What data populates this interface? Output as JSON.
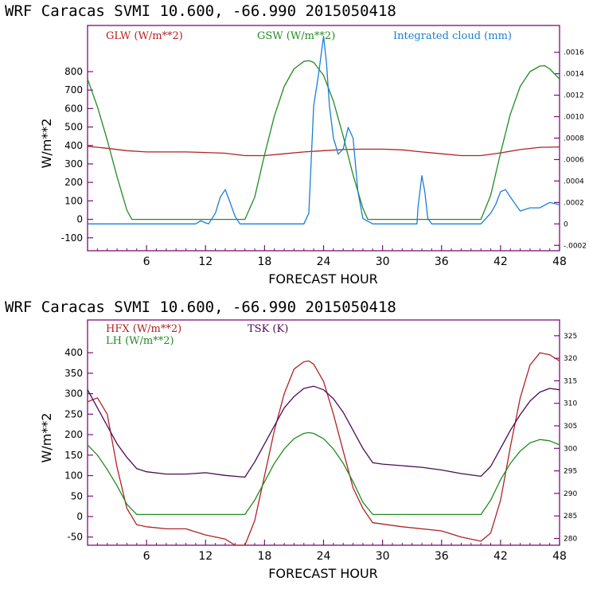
{
  "chart_data": [
    {
      "type": "line",
      "title": "WRF  Caracas SVMI  10.600, -66.990  2015050418",
      "xlabel": "FORECAST HOUR",
      "ylabel": "W/m**2",
      "xlim": [
        0,
        48
      ],
      "ylim": [
        -170,
        1050
      ],
      "x_ticks": [
        6,
        12,
        18,
        24,
        30,
        36,
        42,
        48
      ],
      "y_ticks": [
        -100,
        0,
        100,
        200,
        300,
        400,
        500,
        600,
        700,
        800
      ],
      "right_axis": {
        "ticks": [
          -0.0002,
          0,
          0.0002,
          0.0004,
          0.0006,
          0.0008,
          0.001,
          0.0012,
          0.0014,
          0.0016
        ],
        "tick_labels": [
          "-.0002",
          "0",
          ".0002",
          ".0004",
          ".0006",
          ".0008",
          ".0010",
          ".0012",
          ".0014",
          ".0016"
        ]
      },
      "series": [
        {
          "name": "GLW (W/m**2)",
          "color": "#b22222",
          "axis": "left",
          "x": [
            0,
            2,
            4,
            6,
            8,
            10,
            12,
            14,
            16,
            18,
            20,
            22,
            24,
            26,
            28,
            30,
            32,
            34,
            36,
            38,
            40,
            42,
            44,
            46,
            48
          ],
          "y": [
            395,
            385,
            372,
            365,
            365,
            365,
            362,
            358,
            345,
            345,
            355,
            365,
            372,
            378,
            380,
            380,
            376,
            365,
            355,
            345,
            345,
            360,
            378,
            390,
            392
          ]
        },
        {
          "name": "GSW (W/m**2)",
          "color": "#228b22",
          "axis": "left",
          "x": [
            0,
            1,
            2,
            3,
            4,
            4.5,
            16,
            17,
            18,
            19,
            20,
            21,
            22,
            22.5,
            23,
            24,
            25,
            26,
            27,
            28,
            28.5,
            40,
            41,
            42,
            43,
            44,
            45,
            46,
            46.5,
            47,
            48
          ],
          "y": [
            760,
            610,
            430,
            230,
            50,
            0,
            0,
            120,
            350,
            560,
            720,
            815,
            855,
            860,
            850,
            780,
            640,
            450,
            240,
            60,
            0,
            0,
            130,
            360,
            570,
            720,
            800,
            830,
            832,
            815,
            760
          ]
        },
        {
          "name": "Integrated cloud (mm)",
          "color": "#1a7fd4",
          "axis": "right",
          "x": [
            0,
            11,
            11.5,
            12,
            12.3,
            13,
            13.5,
            14,
            14.5,
            15,
            15.5,
            22,
            22.5,
            23,
            23.5,
            24,
            24.3,
            24.6,
            25,
            25.5,
            26,
            26.5,
            27,
            27.5,
            28,
            29,
            33.5,
            33.6,
            34,
            34.3,
            34.6,
            35,
            40,
            41,
            41.5,
            42,
            42.5,
            43,
            44,
            45,
            46,
            47,
            48
          ],
          "y": [
            0,
            0,
            3e-05,
            1e-05,
            0,
            0.0001,
            0.00025,
            0.00032,
            0.0002,
            7e-05,
            0,
            0,
            0.0001,
            0.0011,
            0.0014,
            0.00175,
            0.0015,
            0.0011,
            0.0008,
            0.00065,
            0.0007,
            0.0009,
            0.0008,
            0.0003,
            5e-05,
            0,
            0,
            0.00015,
            0.00045,
            0.0003,
            5e-05,
            0,
            0,
            0.0001,
            0.00018,
            0.0003,
            0.00032,
            0.00025,
            0.00012,
            0.00015,
            0.00015,
            0.0002,
            0.00018
          ]
        }
      ]
    },
    {
      "type": "line",
      "title": "WRF  Caracas SVMI  10.600, -66.990  2015050418",
      "xlabel": "FORECAST HOUR",
      "ylabel": "W/m**2",
      "xlim": [
        0,
        48
      ],
      "ylim": [
        -70,
        480
      ],
      "x_ticks": [
        6,
        12,
        18,
        24,
        30,
        36,
        42,
        48
      ],
      "y_ticks": [
        -50,
        0,
        50,
        100,
        150,
        200,
        250,
        300,
        350,
        400
      ],
      "right_axis": {
        "ticks": [
          280,
          285,
          290,
          295,
          300,
          305,
          310,
          315,
          320,
          325
        ],
        "tick_labels": [
          "280",
          "285",
          "290",
          "295",
          "300",
          "305",
          "310",
          "315",
          "320",
          "325"
        ]
      },
      "series": [
        {
          "name": "HFX (W/m**2)",
          "color": "#b22222",
          "axis": "left",
          "x": [
            0,
            0.5,
            1,
            2,
            3,
            4,
            5,
            6,
            8,
            10,
            12,
            14,
            15,
            16,
            17,
            18,
            19,
            20,
            21,
            22,
            22.5,
            23,
            24,
            25,
            26,
            27,
            28,
            29,
            32,
            36,
            38,
            40,
            41,
            42,
            43,
            44,
            45,
            46,
            47,
            48
          ],
          "y": [
            280,
            285,
            290,
            250,
            120,
            20,
            -20,
            -25,
            -30,
            -30,
            -45,
            -55,
            -70,
            -70,
            -10,
            100,
            210,
            300,
            360,
            378,
            380,
            372,
            330,
            250,
            160,
            70,
            20,
            -15,
            -25,
            -35,
            -50,
            -60,
            -40,
            40,
            170,
            290,
            370,
            400,
            395,
            380
          ]
        },
        {
          "name": "LH (W/m**2)",
          "color": "#228b22",
          "axis": "left",
          "x": [
            0,
            1,
            2,
            3,
            4,
            5,
            8,
            12,
            16,
            17,
            18,
            19,
            20,
            21,
            22,
            22.5,
            23,
            24,
            25,
            26,
            27,
            28,
            29,
            34,
            40,
            41,
            42,
            43,
            44,
            45,
            46,
            47,
            48
          ],
          "y": [
            175,
            150,
            115,
            75,
            30,
            5,
            5,
            5,
            5,
            40,
            85,
            130,
            165,
            190,
            203,
            205,
            203,
            190,
            165,
            130,
            85,
            35,
            5,
            5,
            5,
            40,
            90,
            130,
            160,
            180,
            188,
            185,
            175
          ]
        },
        {
          "name": "TSK (K)",
          "color": "#4b0a55",
          "axis": "right",
          "x": [
            0,
            1,
            2,
            3,
            4,
            5,
            6,
            8,
            10,
            12,
            14,
            15,
            16,
            17,
            18,
            19,
            20,
            21,
            22,
            23,
            24,
            25,
            26,
            27,
            28,
            29,
            30,
            34,
            36,
            38,
            40,
            41,
            42,
            43,
            44,
            45,
            46,
            47,
            48
          ],
          "y": [
            313,
            309,
            305,
            301,
            298,
            295.5,
            294.8,
            294.3,
            294.3,
            294.6,
            294.0,
            293.8,
            293.6,
            297,
            301,
            305,
            309,
            311.5,
            313.3,
            313.8,
            313,
            311,
            308,
            304,
            300,
            296.8,
            296.5,
            295.8,
            295.2,
            294.4,
            293.8,
            296,
            300,
            304,
            307.5,
            310.5,
            312.5,
            313.3,
            313
          ]
        }
      ]
    }
  ]
}
